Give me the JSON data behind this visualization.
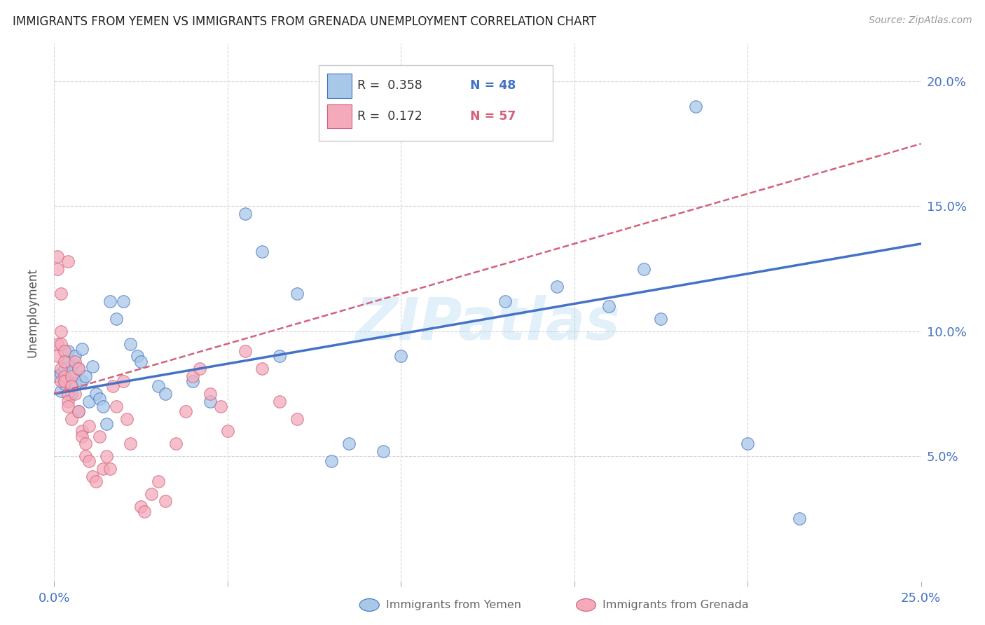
{
  "title": "IMMIGRANTS FROM YEMEN VS IMMIGRANTS FROM GRENADA UNEMPLOYMENT CORRELATION CHART",
  "source": "Source: ZipAtlas.com",
  "ylabel": "Unemployment",
  "xmin": 0.0,
  "xmax": 0.25,
  "ymin": 0.0,
  "ymax": 0.215,
  "ytick_positions": [
    0.05,
    0.1,
    0.15,
    0.2
  ],
  "ytick_labels": [
    "5.0%",
    "10.0%",
    "15.0%",
    "20.0%"
  ],
  "xtick_positions": [
    0.0,
    0.05,
    0.1,
    0.15,
    0.2,
    0.25
  ],
  "xtick_labels_show": [
    "0.0%",
    "",
    "",
    "",
    "",
    "25.0%"
  ],
  "legend_r1": "R = 0.358",
  "legend_n1": "N = 48",
  "legend_r2": "R = 0.172",
  "legend_n2": "N = 57",
  "color_yemen": "#a8c8e8",
  "color_grenada": "#f4aabb",
  "color_line_yemen": "#4472C4",
  "color_line_grenada": "#d4607a",
  "watermark": "ZIPatlas",
  "yemen_points": [
    [
      0.001,
      0.082
    ],
    [
      0.002,
      0.076
    ],
    [
      0.002,
      0.083
    ],
    [
      0.003,
      0.085
    ],
    [
      0.003,
      0.079
    ],
    [
      0.004,
      0.088
    ],
    [
      0.004,
      0.092
    ],
    [
      0.005,
      0.075
    ],
    [
      0.005,
      0.084
    ],
    [
      0.006,
      0.09
    ],
    [
      0.006,
      0.079
    ],
    [
      0.007,
      0.085
    ],
    [
      0.007,
      0.068
    ],
    [
      0.008,
      0.093
    ],
    [
      0.008,
      0.08
    ],
    [
      0.009,
      0.082
    ],
    [
      0.01,
      0.072
    ],
    [
      0.011,
      0.086
    ],
    [
      0.012,
      0.075
    ],
    [
      0.013,
      0.073
    ],
    [
      0.014,
      0.07
    ],
    [
      0.015,
      0.063
    ],
    [
      0.016,
      0.112
    ],
    [
      0.018,
      0.105
    ],
    [
      0.02,
      0.112
    ],
    [
      0.022,
      0.095
    ],
    [
      0.024,
      0.09
    ],
    [
      0.025,
      0.088
    ],
    [
      0.03,
      0.078
    ],
    [
      0.032,
      0.075
    ],
    [
      0.04,
      0.08
    ],
    [
      0.045,
      0.072
    ],
    [
      0.055,
      0.147
    ],
    [
      0.06,
      0.132
    ],
    [
      0.065,
      0.09
    ],
    [
      0.07,
      0.115
    ],
    [
      0.08,
      0.048
    ],
    [
      0.085,
      0.055
    ],
    [
      0.095,
      0.052
    ],
    [
      0.1,
      0.09
    ],
    [
      0.13,
      0.112
    ],
    [
      0.145,
      0.118
    ],
    [
      0.16,
      0.11
    ],
    [
      0.17,
      0.125
    ],
    [
      0.175,
      0.105
    ],
    [
      0.185,
      0.19
    ],
    [
      0.2,
      0.055
    ],
    [
      0.215,
      0.025
    ]
  ],
  "grenada_points": [
    [
      0.001,
      0.13
    ],
    [
      0.001,
      0.125
    ],
    [
      0.001,
      0.095
    ],
    [
      0.001,
      0.09
    ],
    [
      0.002,
      0.115
    ],
    [
      0.002,
      0.085
    ],
    [
      0.002,
      0.1
    ],
    [
      0.002,
      0.095
    ],
    [
      0.002,
      0.08
    ],
    [
      0.003,
      0.092
    ],
    [
      0.003,
      0.088
    ],
    [
      0.003,
      0.082
    ],
    [
      0.003,
      0.08
    ],
    [
      0.004,
      0.075
    ],
    [
      0.004,
      0.072
    ],
    [
      0.004,
      0.07
    ],
    [
      0.004,
      0.128
    ],
    [
      0.005,
      0.082
    ],
    [
      0.005,
      0.078
    ],
    [
      0.005,
      0.065
    ],
    [
      0.006,
      0.075
    ],
    [
      0.006,
      0.088
    ],
    [
      0.007,
      0.085
    ],
    [
      0.007,
      0.068
    ],
    [
      0.008,
      0.06
    ],
    [
      0.008,
      0.058
    ],
    [
      0.009,
      0.055
    ],
    [
      0.009,
      0.05
    ],
    [
      0.01,
      0.048
    ],
    [
      0.01,
      0.062
    ],
    [
      0.011,
      0.042
    ],
    [
      0.012,
      0.04
    ],
    [
      0.013,
      0.058
    ],
    [
      0.014,
      0.045
    ],
    [
      0.015,
      0.05
    ],
    [
      0.016,
      0.045
    ],
    [
      0.017,
      0.078
    ],
    [
      0.018,
      0.07
    ],
    [
      0.02,
      0.08
    ],
    [
      0.021,
      0.065
    ],
    [
      0.022,
      0.055
    ],
    [
      0.025,
      0.03
    ],
    [
      0.026,
      0.028
    ],
    [
      0.028,
      0.035
    ],
    [
      0.03,
      0.04
    ],
    [
      0.032,
      0.032
    ],
    [
      0.035,
      0.055
    ],
    [
      0.038,
      0.068
    ],
    [
      0.04,
      0.082
    ],
    [
      0.042,
      0.085
    ],
    [
      0.045,
      0.075
    ],
    [
      0.048,
      0.07
    ],
    [
      0.05,
      0.06
    ],
    [
      0.055,
      0.092
    ],
    [
      0.06,
      0.085
    ],
    [
      0.065,
      0.072
    ],
    [
      0.07,
      0.065
    ]
  ]
}
